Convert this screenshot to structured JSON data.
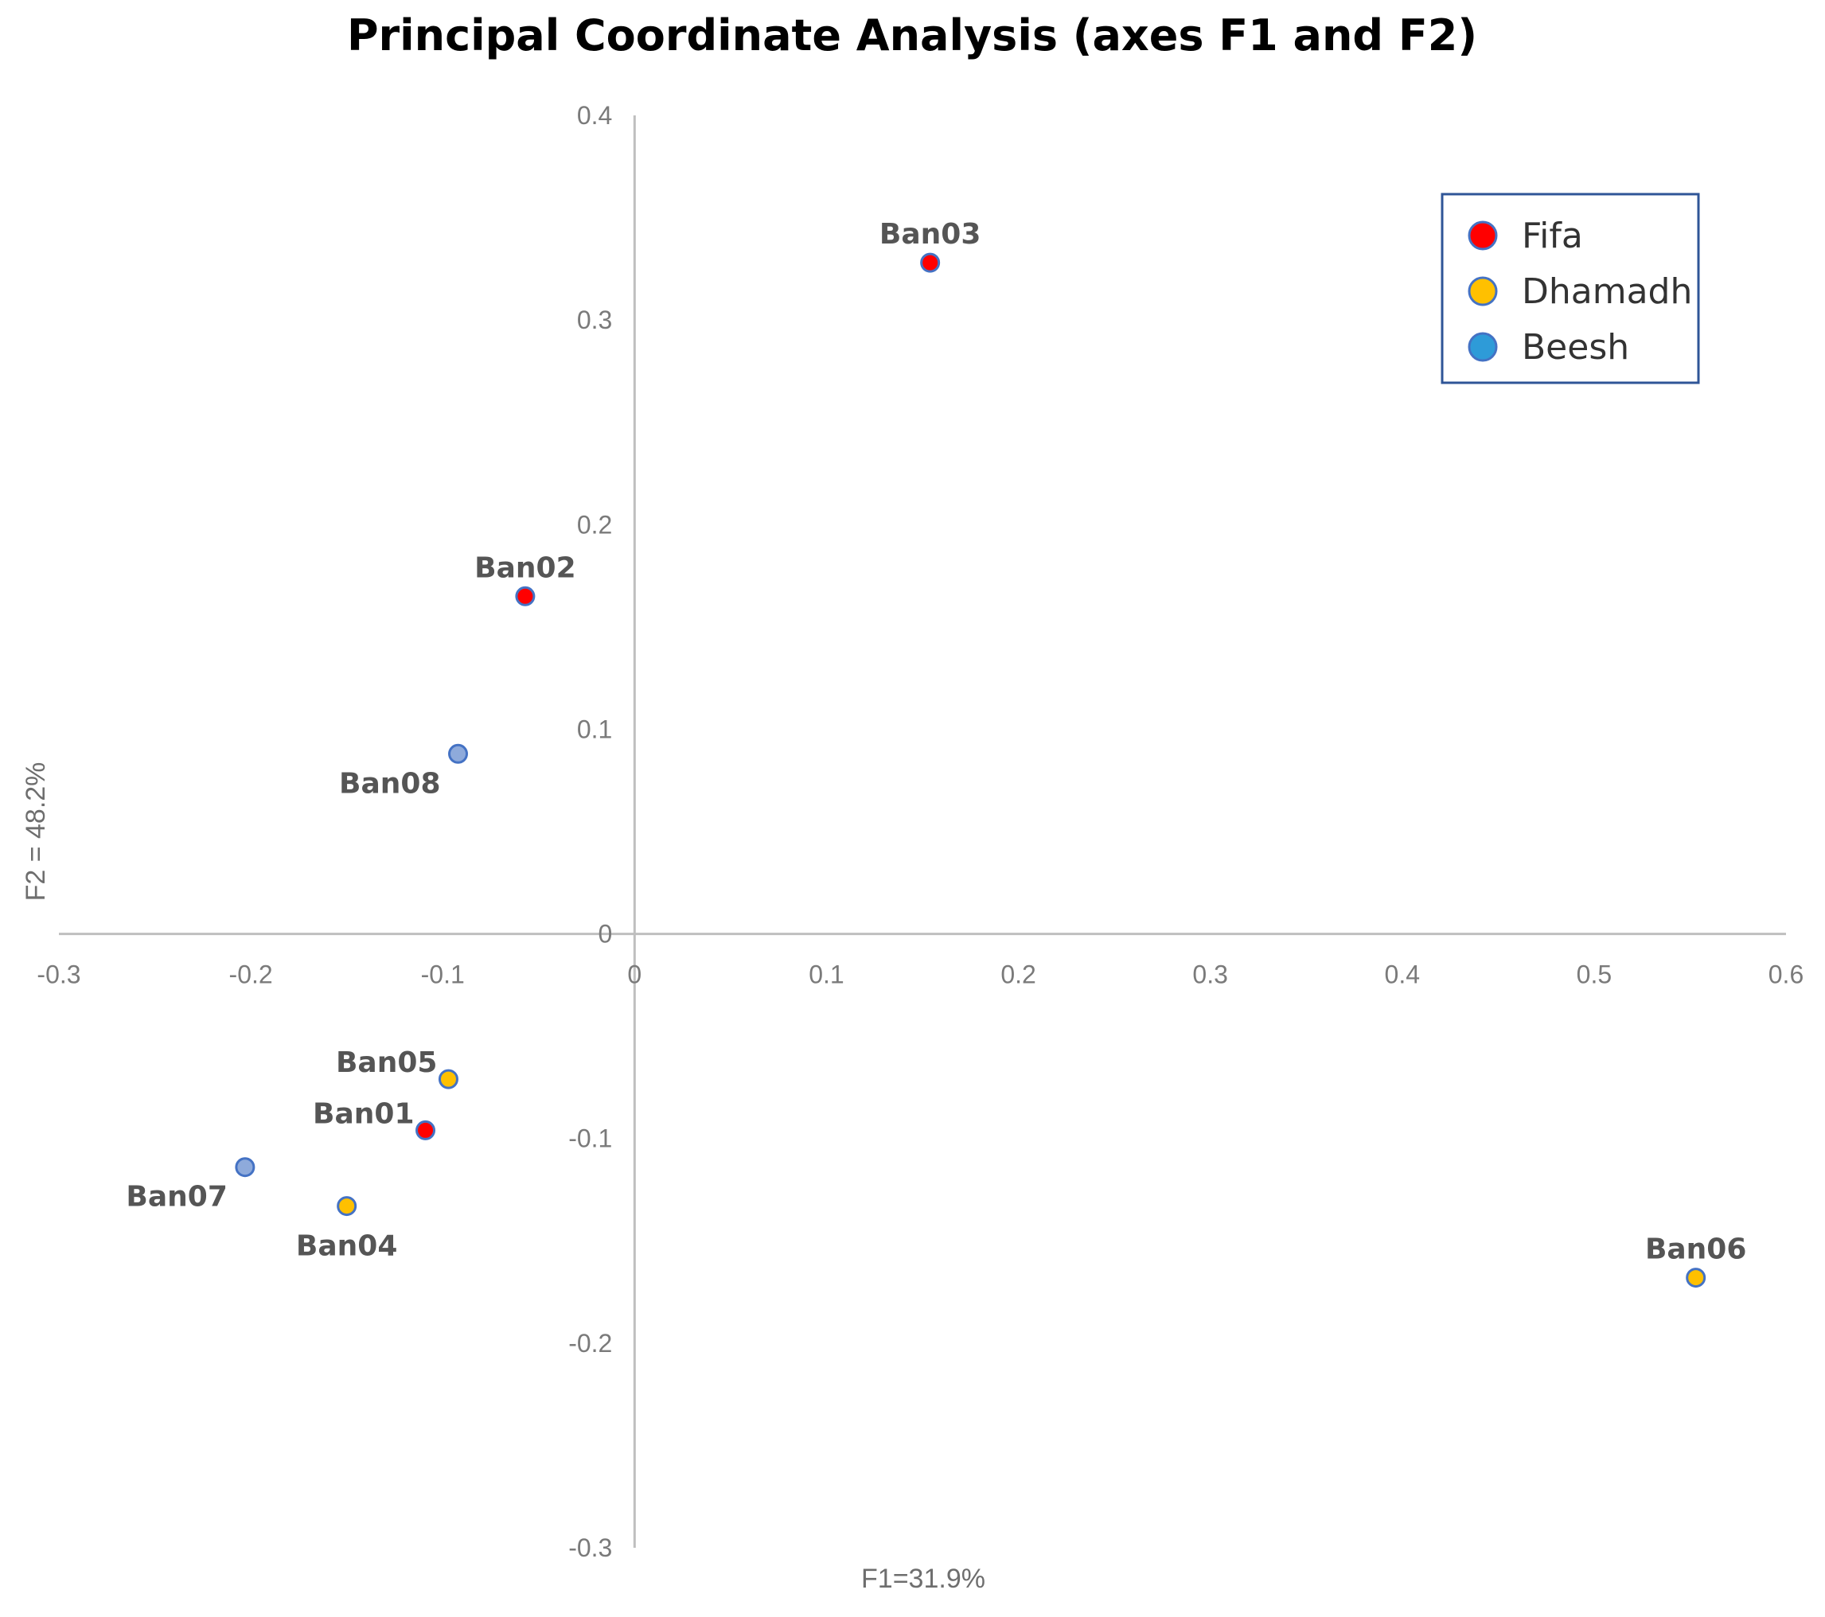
{
  "chart_data": {
    "type": "scatter",
    "title": "Principal Coordinate Analysis (axes F1 and F2)",
    "xlabel": "F1=31.9%",
    "ylabel": "F2 = 48.2%",
    "xlim": [
      -0.3,
      0.6
    ],
    "ylim": [
      -0.3,
      0.4
    ],
    "x_ticks": [
      -0.3,
      -0.2,
      -0.1,
      0,
      0.1,
      0.2,
      0.3,
      0.4,
      0.5,
      0.6
    ],
    "y_ticks": [
      -0.3,
      -0.2,
      -0.1,
      0,
      0.1,
      0.2,
      0.3,
      0.4
    ],
    "x_tick_labels": [
      "-0.3",
      "-0.2",
      "-0.1",
      "0",
      "0.1",
      "0.2",
      "0.3",
      "0.4",
      "0.5",
      "0.6"
    ],
    "y_tick_labels": [
      "-0.3",
      "-0.2",
      "-0.1",
      "0",
      "0.1",
      "0.2",
      "0.3",
      "0.4"
    ],
    "grid": false,
    "legend_position": "top-right",
    "series": [
      {
        "name": "Fifa",
        "color": "#ff0000",
        "legend_marker_color": "#ff0000",
        "points": [
          {
            "label": "Ban03",
            "x": 0.154,
            "y": 0.328,
            "label_pos": "above"
          },
          {
            "label": "Ban02",
            "x": -0.057,
            "y": 0.165,
            "label_pos": "above"
          },
          {
            "label": "Ban01",
            "x": -0.109,
            "y": -0.096,
            "label_pos": "left"
          }
        ]
      },
      {
        "name": "Dhamadh",
        "color": "#ffc000",
        "legend_marker_color": "#ffc000",
        "points": [
          {
            "label": "Ban05",
            "x": -0.097,
            "y": -0.071,
            "label_pos": "left"
          },
          {
            "label": "Ban04",
            "x": -0.15,
            "y": -0.133,
            "label_pos": "below"
          },
          {
            "label": "Ban06",
            "x": 0.553,
            "y": -0.168,
            "label_pos": "above"
          }
        ]
      },
      {
        "name": "Beesh",
        "color": "#8eaadb",
        "legend_marker_color": "#2e9bd8",
        "points": [
          {
            "label": "Ban08",
            "x": -0.092,
            "y": 0.088,
            "label_pos": "below-left"
          },
          {
            "label": "Ban07",
            "x": -0.203,
            "y": -0.114,
            "label_pos": "below-left"
          }
        ]
      }
    ]
  }
}
